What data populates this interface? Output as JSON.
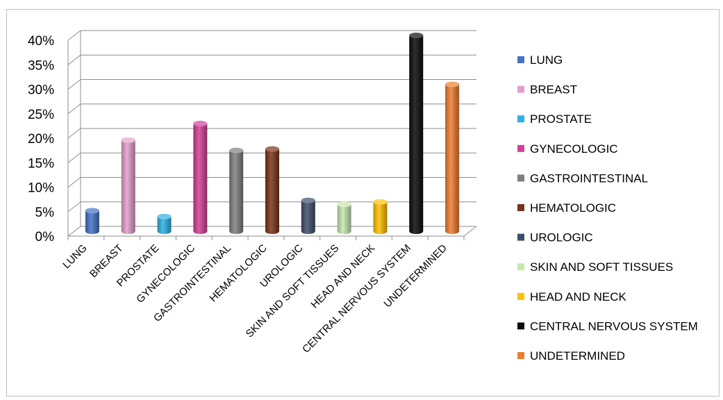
{
  "chart_data": {
    "type": "bar",
    "title": "",
    "xlabel": "",
    "ylabel": "",
    "ylim": [
      0,
      40
    ],
    "yticks": [
      "0%",
      "5%",
      "10%",
      "15%",
      "20%",
      "25%",
      "30%",
      "35%",
      "40%"
    ],
    "grid": true,
    "legend_position": "right",
    "categories": [
      "LUNG",
      "BREAST",
      "PROSTATE",
      "GYNECOLOGIC",
      "GASTROINTESTINAL",
      "HEMATOLOGIC",
      "UROLOGIC",
      "SKIN AND SOFT TISSUES",
      "HEAD AND NECK",
      "CENTRAL NERVOUS SYSTEM",
      "UNDETERMINED"
    ],
    "values": [
      4.2,
      18.6,
      3.0,
      22.0,
      16.5,
      16.8,
      6.3,
      5.5,
      6.0,
      40.0,
      30.0
    ],
    "colors": [
      "#4472c4",
      "#e39fcb",
      "#2eb0e4",
      "#d43f99",
      "#7f7f7f",
      "#7b3318",
      "#3e4e6b",
      "#c7e7b0",
      "#ffc000",
      "#0a0a0a",
      "#ee7d31"
    ],
    "legend": [
      "LUNG",
      "BREAST",
      "PROSTATE",
      "GYNECOLOGIC",
      "GASTROINTESTINAL",
      "HEMATOLOGIC",
      "UROLOGIC",
      "SKIN AND SOFT TISSUES",
      "HEAD AND NECK",
      "CENTRAL NERVOUS SYSTEM",
      "UNDETERMINED"
    ]
  }
}
